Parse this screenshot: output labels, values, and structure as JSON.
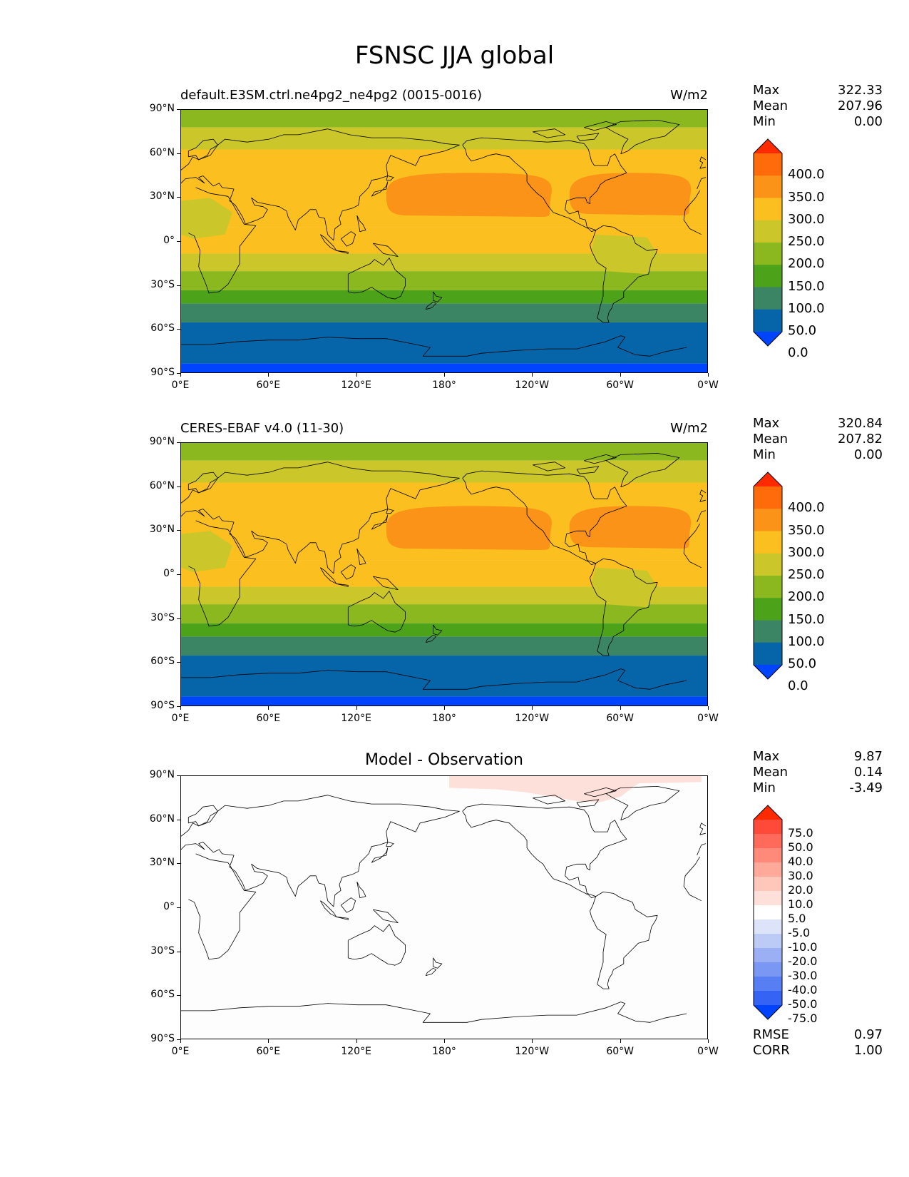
{
  "figure_title": "FSNSC JJA global",
  "chart_data": [
    {
      "type": "heatmap",
      "title": "default.E3SM.ctrl.ne4pg2_ne4pg2 (0015-0016)",
      "units": "W/m2",
      "stats": {
        "max_label": "Max",
        "max": "322.33",
        "mean_label": "Mean",
        "mean": "207.96",
        "min_label": "Min",
        "min": "0.00"
      },
      "x_ticks": [
        "0°E",
        "60°E",
        "120°E",
        "180°",
        "120°W",
        "60°W",
        "0°W"
      ],
      "y_ticks": [
        "90°N",
        "60°N",
        "30°N",
        "0°",
        "30°S",
        "60°S",
        "90°S"
      ],
      "colorbar": {
        "levels": [
          "400.0",
          "350.0",
          "300.0",
          "250.0",
          "200.0",
          "150.0",
          "100.0",
          "50.0",
          "0.0"
        ],
        "colors": [
          "#ff2a00",
          "#ff6a0b",
          "#fb9318",
          "#fbc020",
          "#cbc72a",
          "#8cb81f",
          "#4ca319",
          "#3b8565",
          "#0565a8",
          "#0044ff"
        ]
      },
      "bands": [
        {
          "lat_top": 90,
          "lat_bottom": 78,
          "value": 150
        },
        {
          "lat_top": 78,
          "lat_bottom": 63,
          "value": 200
        },
        {
          "lat_top": 63,
          "lat_bottom": 10,
          "value": 250
        },
        {
          "lat_top": 10,
          "lat_bottom": -8,
          "value": 250
        },
        {
          "lat_top": -8,
          "lat_bottom": -20,
          "value": 200
        },
        {
          "lat_top": -20,
          "lat_bottom": -33,
          "value": 150
        },
        {
          "lat_top": -33,
          "lat_bottom": -42,
          "value": 100
        },
        {
          "lat_top": -42,
          "lat_bottom": -55,
          "value": 50
        },
        {
          "lat_top": -55,
          "lat_bottom": -83,
          "value": 0
        },
        {
          "lat_top": -83,
          "lat_bottom": -90,
          "value": -1
        }
      ],
      "subtropical_highs": [
        {
          "lon_range": [
            140,
            255
          ],
          "lat_range": [
            17,
            47
          ],
          "value": 300
        },
        {
          "lon_range": [
            265,
            350
          ],
          "lat_range": [
            18,
            47
          ],
          "value": 300
        }
      ],
      "arctic_region": {
        "lon_range": [
          265,
          360
        ],
        "lat_range": [
          80,
          90
        ],
        "value": 150
      }
    },
    {
      "type": "heatmap",
      "title": "CERES-EBAF v4.0 (11-30)",
      "units": "W/m2",
      "stats": {
        "max_label": "Max",
        "max": "320.84",
        "mean_label": "Mean",
        "mean": "207.82",
        "min_label": "Min",
        "min": "0.00"
      },
      "x_ticks": [
        "0°E",
        "60°E",
        "120°E",
        "180°",
        "120°W",
        "60°W",
        "0°W"
      ],
      "y_ticks": [
        "90°N",
        "60°N",
        "30°N",
        "0°",
        "30°S",
        "60°S",
        "90°S"
      ],
      "colorbar": {
        "levels": [
          "400.0",
          "350.0",
          "300.0",
          "250.0",
          "200.0",
          "150.0",
          "100.0",
          "50.0",
          "0.0"
        ],
        "colors": [
          "#ff2a00",
          "#ff6a0b",
          "#fb9318",
          "#fbc020",
          "#cbc72a",
          "#8cb81f",
          "#4ca319",
          "#3b8565",
          "#0565a8",
          "#0044ff"
        ]
      },
      "bands": [
        {
          "lat_top": 90,
          "lat_bottom": 78,
          "value": 150
        },
        {
          "lat_top": 78,
          "lat_bottom": 63,
          "value": 200
        },
        {
          "lat_top": 63,
          "lat_bottom": 10,
          "value": 250
        },
        {
          "lat_top": 10,
          "lat_bottom": -8,
          "value": 250
        },
        {
          "lat_top": -8,
          "lat_bottom": -20,
          "value": 200
        },
        {
          "lat_top": -20,
          "lat_bottom": -33,
          "value": 150
        },
        {
          "lat_top": -33,
          "lat_bottom": -42,
          "value": 100
        },
        {
          "lat_top": -42,
          "lat_bottom": -55,
          "value": 50
        },
        {
          "lat_top": -55,
          "lat_bottom": -83,
          "value": 0
        },
        {
          "lat_top": -83,
          "lat_bottom": -90,
          "value": -1
        }
      ],
      "subtropical_highs": [
        {
          "lon_range": [
            140,
            255
          ],
          "lat_range": [
            17,
            47
          ],
          "value": 300
        },
        {
          "lon_range": [
            265,
            350
          ],
          "lat_range": [
            18,
            47
          ],
          "value": 300
        }
      ],
      "arctic_region": {
        "lon_range": [
          183,
          360
        ],
        "lat_range": [
          80,
          90
        ],
        "value": 150
      }
    },
    {
      "type": "heatmap",
      "title": "Model - Observation",
      "units": "",
      "stats": {
        "max_label": "Max",
        "max": "9.87",
        "mean_label": "Mean",
        "mean": "0.14",
        "min_label": "Min",
        "min": "-3.49"
      },
      "x_ticks": [
        "0°E",
        "60°E",
        "120°E",
        "180°",
        "120°W",
        "60°W",
        "0°W"
      ],
      "y_ticks": [
        "90°N",
        "60°N",
        "30°N",
        "0°",
        "30°S",
        "60°S",
        "90°S"
      ],
      "colorbar": {
        "levels": [
          "75.0",
          "50.0",
          "40.0",
          "30.0",
          "20.0",
          "10.0",
          "5.0",
          "-5.0",
          "-10.0",
          "-20.0",
          "-30.0",
          "-40.0",
          "-50.0",
          "-75.0"
        ],
        "colors": [
          "#ff2a00",
          "#ff4a3a",
          "#ff6a5a",
          "#ff8a7a",
          "#ffa99a",
          "#ffc6ba",
          "#fee0da",
          "#ffffff",
          "#dde3f8",
          "#bccaf6",
          "#9bb0f4",
          "#7a97f3",
          "#587ef3",
          "#3564f5",
          "#0044ff"
        ]
      },
      "positive_region": {
        "lon_range": [
          183,
          355
        ],
        "lat_range": [
          74,
          90
        ],
        "value": "5.0-10.0"
      },
      "metrics": {
        "rmse_label": "RMSE",
        "rmse": "0.97",
        "corr_label": "CORR",
        "corr": "1.00"
      }
    }
  ]
}
